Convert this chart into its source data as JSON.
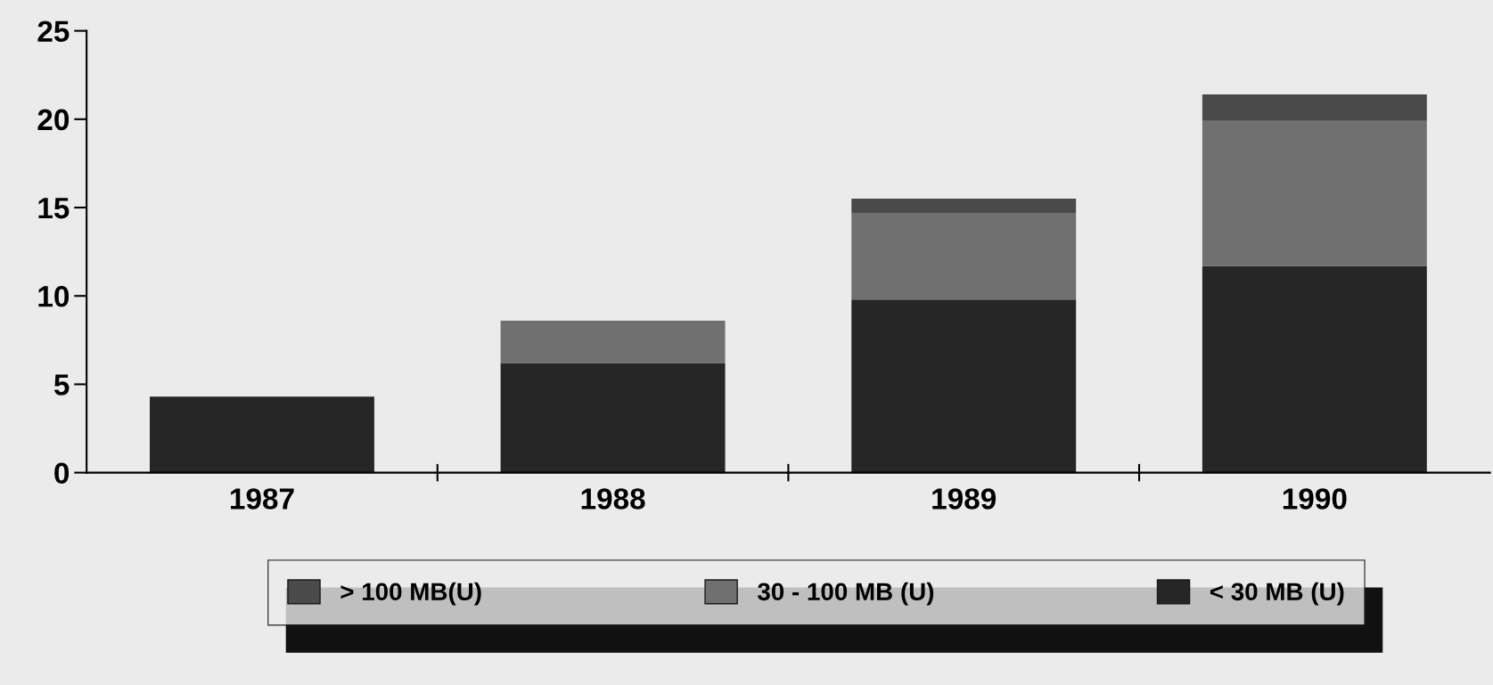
{
  "chart_data": {
    "type": "bar",
    "stacked": true,
    "categories": [
      "1987",
      "1988",
      "1989",
      "1990"
    ],
    "series": [
      {
        "name": "< 30 MB (U)",
        "color": "#262626",
        "values": [
          4.3,
          6.2,
          9.8,
          11.7
        ]
      },
      {
        "name": "30 - 100 MB (U)",
        "color": "#707070",
        "values": [
          null,
          2.4,
          4.9,
          8.2
        ]
      },
      {
        "name": "> 100 MB(U)",
        "color": "#4a4a4a",
        "values": [
          null,
          null,
          0.8,
          1.5
        ]
      }
    ],
    "ylim": [
      0,
      25
    ],
    "yticks": [
      0,
      5,
      10,
      15,
      20,
      25
    ],
    "grid": false,
    "legend": "bottom"
  }
}
